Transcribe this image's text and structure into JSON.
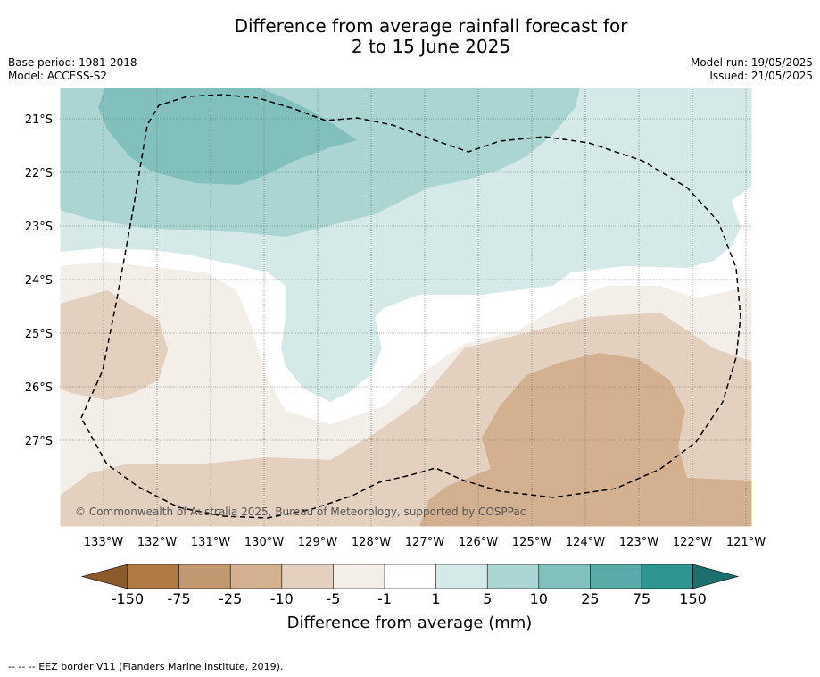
{
  "title": {
    "line1": "Difference from average rainfall forecast for",
    "line2": "2 to 15 June 2025"
  },
  "meta_left": {
    "base_period": "Base period: 1981-2018",
    "model": "Model: ACCESS-S2"
  },
  "meta_right": {
    "model_run": "Model run: 19/05/2025",
    "issued": "Issued: 21/05/2025"
  },
  "map": {
    "latitude_labels": [
      "21°S",
      "22°S",
      "23°S",
      "24°S",
      "25°S",
      "26°S",
      "27°S"
    ],
    "longitude_labels": [
      "133°W",
      "132°W",
      "131°W",
      "130°W",
      "129°W",
      "128°W",
      "127°W",
      "126°W",
      "125°W",
      "124°W",
      "123°W",
      "122°W",
      "121°W"
    ],
    "copyright": "© Commonwealth of Australia 2025, Bureau of Meteorology, supported by COSPPac",
    "colors": {
      "dry_-25": "#d3b08f",
      "dry_-10": "#e3d0bf",
      "dry_-5": "#f4eee9",
      "neutral": "#ffffff",
      "wet_5": "#d5e9e8",
      "wet_10": "#abd5d3",
      "wet_25": "#82c0bd"
    }
  },
  "colorbar": {
    "tick_labels": [
      "-150",
      "-75",
      "-25",
      "-10",
      "-5",
      "-1",
      "1",
      "5",
      "10",
      "25",
      "75",
      "150"
    ],
    "label": "Difference from average (mm)",
    "colors": [
      "#8c5a2b",
      "#b07a44",
      "#c29871",
      "#d3b08f",
      "#e3d0bf",
      "#f4eee9",
      "#ffffff",
      "#d5e9e8",
      "#abd5d3",
      "#82c0bd",
      "#59aba7",
      "#2f9692",
      "#1c6f6c"
    ]
  },
  "footer": "--  --  -- EEZ border V11 (Flanders Marine Institute, 2019)."
}
